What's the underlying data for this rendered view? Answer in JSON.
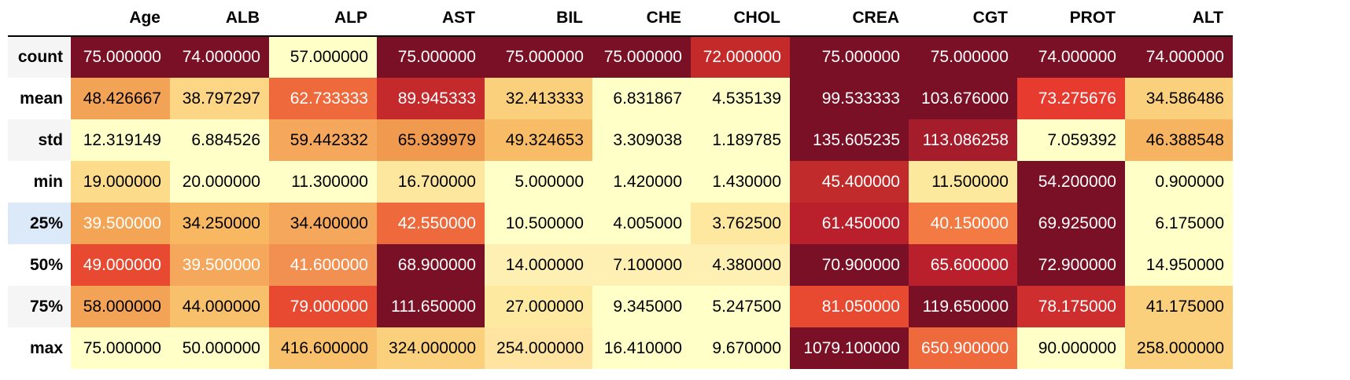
{
  "table": {
    "index_header": "",
    "columns": [
      "Age",
      "ALB",
      "ALP",
      "AST",
      "BIL",
      "CHE",
      "CHOL",
      "CREA",
      "CGT",
      "PROT",
      "ALT"
    ],
    "rows": [
      {
        "label": "count",
        "cells": [
          {
            "v": "75.000000",
            "bg": "#7a1025",
            "fg": "#ffffff"
          },
          {
            "v": "74.000000",
            "bg": "#7a1025",
            "fg": "#ffffff"
          },
          {
            "v": "57.000000",
            "bg": "#ffffc8",
            "fg": "#000000"
          },
          {
            "v": "75.000000",
            "bg": "#7a1025",
            "fg": "#ffffff"
          },
          {
            "v": "75.000000",
            "bg": "#7a1025",
            "fg": "#ffffff"
          },
          {
            "v": "75.000000",
            "bg": "#7a1025",
            "fg": "#ffffff"
          },
          {
            "v": "72.000000",
            "bg": "#c52a2a",
            "fg": "#ffffff"
          },
          {
            "v": "75.000000",
            "bg": "#7a1025",
            "fg": "#ffffff"
          },
          {
            "v": "75.000000",
            "bg": "#7a1025",
            "fg": "#ffffff"
          },
          {
            "v": "74.000000",
            "bg": "#7a1025",
            "fg": "#ffffff"
          },
          {
            "v": "74.000000",
            "bg": "#7a1025",
            "fg": "#ffffff"
          }
        ]
      },
      {
        "label": "mean",
        "cells": [
          {
            "v": "48.426667",
            "bg": "#f3a355",
            "fg": "#000000"
          },
          {
            "v": "38.797297",
            "bg": "#fcd585",
            "fg": "#000000"
          },
          {
            "v": "62.733333",
            "bg": "#ee6a3c",
            "fg": "#ffffff"
          },
          {
            "v": "89.945333",
            "bg": "#c42a2c",
            "fg": "#ffffff"
          },
          {
            "v": "32.413333",
            "bg": "#fbd07c",
            "fg": "#000000"
          },
          {
            "v": "6.831867",
            "bg": "#ffffc8",
            "fg": "#000000"
          },
          {
            "v": "4.535139",
            "bg": "#ffffc8",
            "fg": "#000000"
          },
          {
            "v": "99.533333",
            "bg": "#7a1025",
            "fg": "#ffffff"
          },
          {
            "v": "103.676000",
            "bg": "#7a1025",
            "fg": "#ffffff"
          },
          {
            "v": "73.275676",
            "bg": "#e63b2e",
            "fg": "#ffffff"
          },
          {
            "v": "34.586486",
            "bg": "#fbd07c",
            "fg": "#000000"
          }
        ]
      },
      {
        "label": "std",
        "cells": [
          {
            "v": "12.319149",
            "bg": "#ffffc8",
            "fg": "#000000"
          },
          {
            "v": "6.884526",
            "bg": "#ffffc8",
            "fg": "#000000"
          },
          {
            "v": "59.442332",
            "bg": "#f5a85c",
            "fg": "#000000"
          },
          {
            "v": "65.939979",
            "bg": "#f09a50",
            "fg": "#000000"
          },
          {
            "v": "49.324653",
            "bg": "#f8bc67",
            "fg": "#000000"
          },
          {
            "v": "3.309038",
            "bg": "#ffffc8",
            "fg": "#000000"
          },
          {
            "v": "1.189785",
            "bg": "#ffffc8",
            "fg": "#000000"
          },
          {
            "v": "135.605235",
            "bg": "#7a1025",
            "fg": "#ffffff"
          },
          {
            "v": "113.086258",
            "bg": "#a51d2b",
            "fg": "#ffffff"
          },
          {
            "v": "7.059392",
            "bg": "#ffffc8",
            "fg": "#000000"
          },
          {
            "v": "46.388548",
            "bg": "#f7b460",
            "fg": "#000000"
          }
        ]
      },
      {
        "label": "min",
        "cells": [
          {
            "v": "19.000000",
            "bg": "#fcdb8a",
            "fg": "#000000"
          },
          {
            "v": "20.000000",
            "bg": "#ffffc8",
            "fg": "#000000"
          },
          {
            "v": "11.300000",
            "bg": "#ffffc8",
            "fg": "#000000"
          },
          {
            "v": "16.700000",
            "bg": "#fde79f",
            "fg": "#000000"
          },
          {
            "v": "5.000000",
            "bg": "#ffffc8",
            "fg": "#000000"
          },
          {
            "v": "1.420000",
            "bg": "#ffffc8",
            "fg": "#000000"
          },
          {
            "v": "1.430000",
            "bg": "#ffffc8",
            "fg": "#000000"
          },
          {
            "v": "45.400000",
            "bg": "#c22b2c",
            "fg": "#ffffff"
          },
          {
            "v": "11.500000",
            "bg": "#fde99e",
            "fg": "#000000"
          },
          {
            "v": "54.200000",
            "bg": "#7a1025",
            "fg": "#ffffff"
          },
          {
            "v": "0.900000",
            "bg": "#ffffc8",
            "fg": "#000000"
          }
        ]
      },
      {
        "label": "25%",
        "cells": [
          {
            "v": "39.500000",
            "bg": "#f3a454",
            "fg": "#ffffff"
          },
          {
            "v": "34.250000",
            "bg": "#f8b862",
            "fg": "#000000"
          },
          {
            "v": "34.400000",
            "bg": "#f5a85c",
            "fg": "#000000"
          },
          {
            "v": "42.550000",
            "bg": "#ee6a3c",
            "fg": "#ffffff"
          },
          {
            "v": "10.500000",
            "bg": "#ffffc8",
            "fg": "#000000"
          },
          {
            "v": "4.005000",
            "bg": "#ffffc8",
            "fg": "#000000"
          },
          {
            "v": "3.762500",
            "bg": "#fee8a0",
            "fg": "#000000"
          },
          {
            "v": "61.450000",
            "bg": "#b9202c",
            "fg": "#ffffff"
          },
          {
            "v": "40.150000",
            "bg": "#f37a42",
            "fg": "#ffffff"
          },
          {
            "v": "69.925000",
            "bg": "#7a1025",
            "fg": "#ffffff"
          },
          {
            "v": "6.175000",
            "bg": "#ffffc8",
            "fg": "#000000"
          }
        ]
      },
      {
        "label": "50%",
        "cells": [
          {
            "v": "49.000000",
            "bg": "#e84a31",
            "fg": "#ffffff"
          },
          {
            "v": "39.500000",
            "bg": "#f5a85c",
            "fg": "#ffffff"
          },
          {
            "v": "41.600000",
            "bg": "#f19050",
            "fg": "#ffffff"
          },
          {
            "v": "68.900000",
            "bg": "#7a1025",
            "fg": "#ffffff"
          },
          {
            "v": "14.000000",
            "bg": "#fef0b3",
            "fg": "#000000"
          },
          {
            "v": "7.100000",
            "bg": "#fef0b3",
            "fg": "#000000"
          },
          {
            "v": "4.380000",
            "bg": "#fef0b3",
            "fg": "#000000"
          },
          {
            "v": "70.900000",
            "bg": "#7a1025",
            "fg": "#ffffff"
          },
          {
            "v": "65.600000",
            "bg": "#b9202c",
            "fg": "#ffffff"
          },
          {
            "v": "72.900000",
            "bg": "#7a1025",
            "fg": "#ffffff"
          },
          {
            "v": "14.950000",
            "bg": "#ffffc8",
            "fg": "#000000"
          }
        ]
      },
      {
        "label": "75%",
        "cells": [
          {
            "v": "58.000000",
            "bg": "#f3a355",
            "fg": "#000000"
          },
          {
            "v": "44.000000",
            "bg": "#f8c06a",
            "fg": "#000000"
          },
          {
            "v": "79.000000",
            "bg": "#e84a31",
            "fg": "#ffffff"
          },
          {
            "v": "111.650000",
            "bg": "#7a1025",
            "fg": "#ffffff"
          },
          {
            "v": "27.000000",
            "bg": "#fde9a0",
            "fg": "#000000"
          },
          {
            "v": "9.345000",
            "bg": "#ffffc8",
            "fg": "#000000"
          },
          {
            "v": "5.247500",
            "bg": "#ffffc8",
            "fg": "#000000"
          },
          {
            "v": "81.050000",
            "bg": "#e84a31",
            "fg": "#ffffff"
          },
          {
            "v": "119.650000",
            "bg": "#7a1025",
            "fg": "#ffffff"
          },
          {
            "v": "78.175000",
            "bg": "#cf2e2e",
            "fg": "#ffffff"
          },
          {
            "v": "41.175000",
            "bg": "#fbd07c",
            "fg": "#000000"
          }
        ]
      },
      {
        "label": "max",
        "cells": [
          {
            "v": "75.000000",
            "bg": "#ffffc8",
            "fg": "#000000"
          },
          {
            "v": "50.000000",
            "bg": "#ffffc8",
            "fg": "#000000"
          },
          {
            "v": "416.600000",
            "bg": "#f8c06a",
            "fg": "#000000"
          },
          {
            "v": "324.000000",
            "bg": "#fbd07c",
            "fg": "#000000"
          },
          {
            "v": "254.000000",
            "bg": "#fee4a0",
            "fg": "#000000"
          },
          {
            "v": "16.410000",
            "bg": "#ffffc8",
            "fg": "#000000"
          },
          {
            "v": "9.670000",
            "bg": "#ffffc8",
            "fg": "#000000"
          },
          {
            "v": "1079.100000",
            "bg": "#7a1025",
            "fg": "#ffffff"
          },
          {
            "v": "650.900000",
            "bg": "#ee6a3c",
            "fg": "#ffffff"
          },
          {
            "v": "90.000000",
            "bg": "#ffffc8",
            "fg": "#000000"
          },
          {
            "v": "258.000000",
            "bg": "#fbd07c",
            "fg": "#000000"
          }
        ]
      }
    ]
  }
}
